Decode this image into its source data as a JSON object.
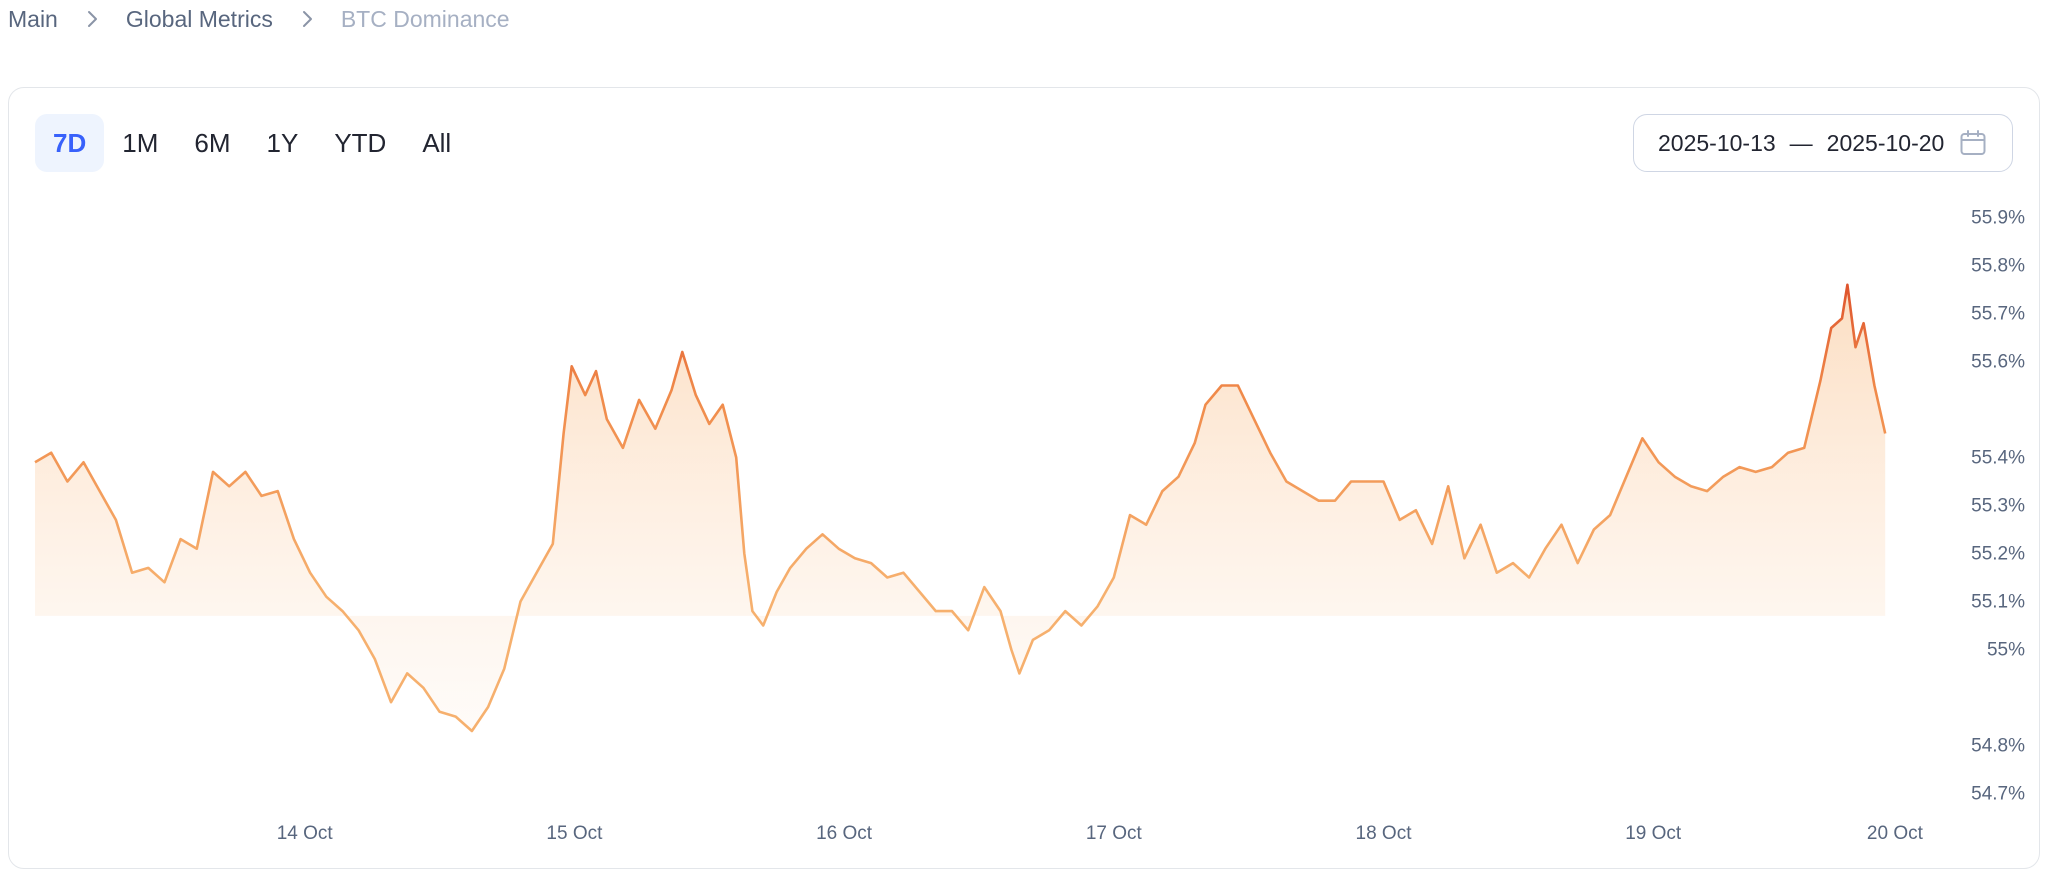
{
  "breadcrumb": {
    "items": [
      "Main",
      "Global Metrics",
      "BTC Dominance"
    ]
  },
  "toolbar": {
    "ranges": [
      "7D",
      "1M",
      "6M",
      "1Y",
      "YTD",
      "All"
    ],
    "active_range": "7D",
    "date_from": "2025-10-13",
    "date_to": "2025-10-20",
    "date_separator": "—"
  },
  "colors": {
    "line_low": "#f6a35c",
    "line_high": "#d63a1e",
    "area_fill": "#fde7d3",
    "accent": "#3861fb"
  },
  "chart_data": {
    "type": "area",
    "title": "",
    "xlabel": "",
    "ylabel": "",
    "x_tick_labels": [
      "14 Oct",
      "15 Oct",
      "16 Oct",
      "17 Oct",
      "18 Oct",
      "19 Oct",
      "20 Oct"
    ],
    "y_tick_labels": [
      "54.7%",
      "54.8%",
      "55%",
      "55.1%",
      "55.2%",
      "55.3%",
      "55.4%",
      "55.6%",
      "55.7%",
      "55.8%",
      "55.9%"
    ],
    "y_tick_values": [
      54.7,
      54.8,
      55.0,
      55.1,
      55.2,
      55.3,
      55.4,
      55.6,
      55.7,
      55.8,
      55.9
    ],
    "ylim": [
      54.68,
      55.92
    ],
    "x_unit": "days after 2025-10-13 00:00",
    "xlim": [
      0.0,
      7.03
    ],
    "series": [
      {
        "name": "",
        "points": [
          [
            0.0,
            55.39
          ],
          [
            0.06,
            55.41
          ],
          [
            0.12,
            55.35
          ],
          [
            0.18,
            55.39
          ],
          [
            0.24,
            55.33
          ],
          [
            0.3,
            55.27
          ],
          [
            0.36,
            55.16
          ],
          [
            0.42,
            55.17
          ],
          [
            0.48,
            55.14
          ],
          [
            0.54,
            55.23
          ],
          [
            0.6,
            55.21
          ],
          [
            0.66,
            55.37
          ],
          [
            0.72,
            55.34
          ],
          [
            0.78,
            55.37
          ],
          [
            0.84,
            55.32
          ],
          [
            0.9,
            55.33
          ],
          [
            0.96,
            55.23
          ],
          [
            1.02,
            55.16
          ],
          [
            1.08,
            55.11
          ],
          [
            1.14,
            55.08
          ],
          [
            1.2,
            55.04
          ],
          [
            1.26,
            54.98
          ],
          [
            1.32,
            54.89
          ],
          [
            1.38,
            54.95
          ],
          [
            1.44,
            54.92
          ],
          [
            1.5,
            54.87
          ],
          [
            1.56,
            54.86
          ],
          [
            1.62,
            54.83
          ],
          [
            1.68,
            54.88
          ],
          [
            1.74,
            54.96
          ],
          [
            1.8,
            55.1
          ],
          [
            1.86,
            55.16
          ],
          [
            1.92,
            55.22
          ],
          [
            1.96,
            55.45
          ],
          [
            1.99,
            55.59
          ],
          [
            2.04,
            55.53
          ],
          [
            2.08,
            55.58
          ],
          [
            2.12,
            55.48
          ],
          [
            2.18,
            55.42
          ],
          [
            2.24,
            55.52
          ],
          [
            2.3,
            55.46
          ],
          [
            2.36,
            55.54
          ],
          [
            2.4,
            55.62
          ],
          [
            2.45,
            55.53
          ],
          [
            2.5,
            55.47
          ],
          [
            2.55,
            55.51
          ],
          [
            2.6,
            55.4
          ],
          [
            2.63,
            55.2
          ],
          [
            2.66,
            55.08
          ],
          [
            2.7,
            55.05
          ],
          [
            2.75,
            55.12
          ],
          [
            2.8,
            55.17
          ],
          [
            2.86,
            55.21
          ],
          [
            2.92,
            55.24
          ],
          [
            2.98,
            55.21
          ],
          [
            3.04,
            55.19
          ],
          [
            3.1,
            55.18
          ],
          [
            3.16,
            55.15
          ],
          [
            3.22,
            55.16
          ],
          [
            3.28,
            55.12
          ],
          [
            3.34,
            55.08
          ],
          [
            3.4,
            55.08
          ],
          [
            3.46,
            55.04
          ],
          [
            3.52,
            55.13
          ],
          [
            3.58,
            55.08
          ],
          [
            3.62,
            55.0
          ],
          [
            3.65,
            54.95
          ],
          [
            3.7,
            55.02
          ],
          [
            3.76,
            55.04
          ],
          [
            3.82,
            55.08
          ],
          [
            3.88,
            55.05
          ],
          [
            3.94,
            55.09
          ],
          [
            4.0,
            55.15
          ],
          [
            4.06,
            55.28
          ],
          [
            4.12,
            55.26
          ],
          [
            4.18,
            55.33
          ],
          [
            4.24,
            55.36
          ],
          [
            4.3,
            55.43
          ],
          [
            4.34,
            55.51
          ],
          [
            4.4,
            55.55
          ],
          [
            4.46,
            55.55
          ],
          [
            4.52,
            55.48
          ],
          [
            4.58,
            55.41
          ],
          [
            4.64,
            55.35
          ],
          [
            4.7,
            55.33
          ],
          [
            4.76,
            55.31
          ],
          [
            4.82,
            55.31
          ],
          [
            4.88,
            55.35
          ],
          [
            4.94,
            55.35
          ],
          [
            5.0,
            55.35
          ],
          [
            5.06,
            55.27
          ],
          [
            5.12,
            55.29
          ],
          [
            5.18,
            55.22
          ],
          [
            5.24,
            55.34
          ],
          [
            5.3,
            55.19
          ],
          [
            5.36,
            55.26
          ],
          [
            5.42,
            55.16
          ],
          [
            5.48,
            55.18
          ],
          [
            5.54,
            55.15
          ],
          [
            5.6,
            55.21
          ],
          [
            5.66,
            55.26
          ],
          [
            5.72,
            55.18
          ],
          [
            5.78,
            55.25
          ],
          [
            5.84,
            55.28
          ],
          [
            5.9,
            55.36
          ],
          [
            5.96,
            55.44
          ],
          [
            6.02,
            55.39
          ],
          [
            6.08,
            55.36
          ],
          [
            6.14,
            55.34
          ],
          [
            6.2,
            55.33
          ],
          [
            6.26,
            55.36
          ],
          [
            6.32,
            55.38
          ],
          [
            6.38,
            55.37
          ],
          [
            6.44,
            55.38
          ],
          [
            6.5,
            55.41
          ],
          [
            6.56,
            55.42
          ],
          [
            6.62,
            55.56
          ],
          [
            6.66,
            55.67
          ],
          [
            6.7,
            55.69
          ],
          [
            6.72,
            55.76
          ],
          [
            6.75,
            55.63
          ],
          [
            6.78,
            55.68
          ],
          [
            6.82,
            55.55
          ],
          [
            6.86,
            55.45
          ]
        ]
      }
    ]
  }
}
